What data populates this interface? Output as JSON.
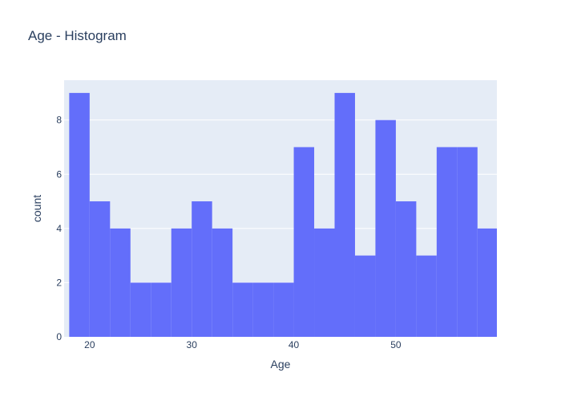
{
  "chart_data": {
    "type": "bar",
    "title": "Age - Histogram",
    "xlabel": "Age",
    "ylabel": "count",
    "bin_width": 2,
    "bins": [
      {
        "x0": 18,
        "x1": 20,
        "count": 9
      },
      {
        "x0": 20,
        "x1": 22,
        "count": 5
      },
      {
        "x0": 22,
        "x1": 24,
        "count": 4
      },
      {
        "x0": 24,
        "x1": 26,
        "count": 2
      },
      {
        "x0": 26,
        "x1": 28,
        "count": 2
      },
      {
        "x0": 28,
        "x1": 30,
        "count": 4
      },
      {
        "x0": 30,
        "x1": 32,
        "count": 5
      },
      {
        "x0": 32,
        "x1": 34,
        "count": 4
      },
      {
        "x0": 34,
        "x1": 36,
        "count": 2
      },
      {
        "x0": 36,
        "x1": 38,
        "count": 2
      },
      {
        "x0": 38,
        "x1": 40,
        "count": 2
      },
      {
        "x0": 40,
        "x1": 42,
        "count": 7
      },
      {
        "x0": 42,
        "x1": 44,
        "count": 4
      },
      {
        "x0": 44,
        "x1": 46,
        "count": 9
      },
      {
        "x0": 46,
        "x1": 48,
        "count": 3
      },
      {
        "x0": 48,
        "x1": 50,
        "count": 8
      },
      {
        "x0": 50,
        "x1": 52,
        "count": 5
      },
      {
        "x0": 52,
        "x1": 54,
        "count": 3
      },
      {
        "x0": 54,
        "x1": 56,
        "count": 7
      },
      {
        "x0": 56,
        "x1": 58,
        "count": 7
      },
      {
        "x0": 58,
        "x1": 60,
        "count": 4
      }
    ],
    "xlim": [
      17.5,
      59.9
    ],
    "ylim": [
      0,
      9.47
    ],
    "x_ticks": [
      20,
      30,
      40,
      50
    ],
    "y_ticks": [
      0,
      2,
      4,
      6,
      8
    ],
    "grid": true,
    "colors": {
      "bar": "#636efa",
      "plot_bg": "#e5ecf6",
      "grid": "#ffffff",
      "text": "#2a3f5f"
    }
  }
}
